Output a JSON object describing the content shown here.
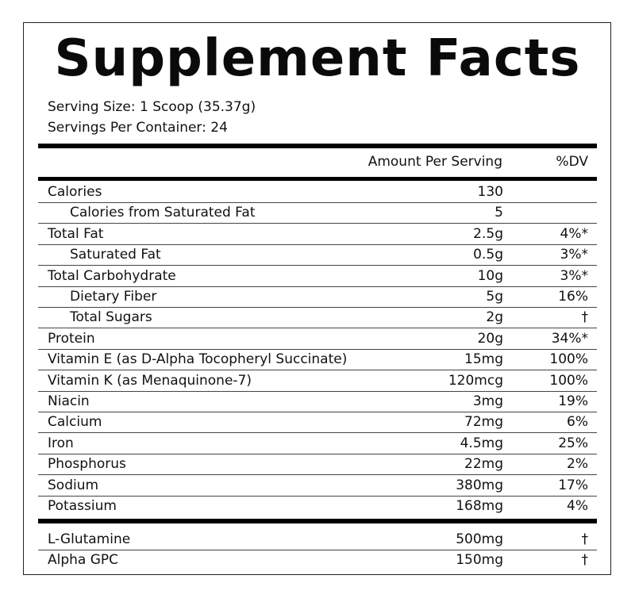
{
  "title": "Supplement Facts",
  "serving_size": "Serving Size: 1 Scoop (35.37g)",
  "servings_per_container": "Servings Per Container: 24",
  "header": {
    "amount": "Amount Per Serving",
    "dv": "%DV"
  },
  "nutrients": [
    {
      "name": "Calories",
      "amount": "130",
      "dv": "",
      "indent": false
    },
    {
      "name": "Calories from Saturated Fat",
      "amount": "5",
      "dv": "",
      "indent": true
    },
    {
      "name": "Total Fat",
      "amount": "2.5g",
      "dv": "4%*",
      "indent": false
    },
    {
      "name": "Saturated Fat",
      "amount": "0.5g",
      "dv": "3%*",
      "indent": true
    },
    {
      "name": "Total Carbohydrate",
      "amount": "10g",
      "dv": "3%*",
      "indent": false
    },
    {
      "name": "Dietary Fiber",
      "amount": "5g",
      "dv": "16%",
      "indent": true
    },
    {
      "name": "Total Sugars",
      "amount": "2g",
      "dv": "†",
      "indent": true
    },
    {
      "name": "Protein",
      "amount": "20g",
      "dv": "34%*",
      "indent": false
    },
    {
      "name": "Vitamin E (as D-Alpha Tocopheryl Succinate)",
      "amount": "15mg",
      "dv": "100%",
      "indent": false
    },
    {
      "name": "Vitamin K (as Menaquinone-7)",
      "amount": "120mcg",
      "dv": "100%",
      "indent": false
    },
    {
      "name": "Niacin",
      "amount": "3mg",
      "dv": "19%",
      "indent": false
    },
    {
      "name": "Calcium",
      "amount": "72mg",
      "dv": "6%",
      "indent": false
    },
    {
      "name": "Iron",
      "amount": "4.5mg",
      "dv": "25%",
      "indent": false
    },
    {
      "name": "Phosphorus",
      "amount": "22mg",
      "dv": "2%",
      "indent": false
    },
    {
      "name": "Sodium",
      "amount": "380mg",
      "dv": "17%",
      "indent": false
    },
    {
      "name": "Potassium",
      "amount": "168mg",
      "dv": "4%",
      "indent": false
    }
  ],
  "other_ingredients": [
    {
      "name": "L-Glutamine",
      "amount": "500mg",
      "dv": "†",
      "indent": false
    },
    {
      "name": "Alpha GPC",
      "amount": "150mg",
      "dv": "†",
      "indent": false
    }
  ]
}
